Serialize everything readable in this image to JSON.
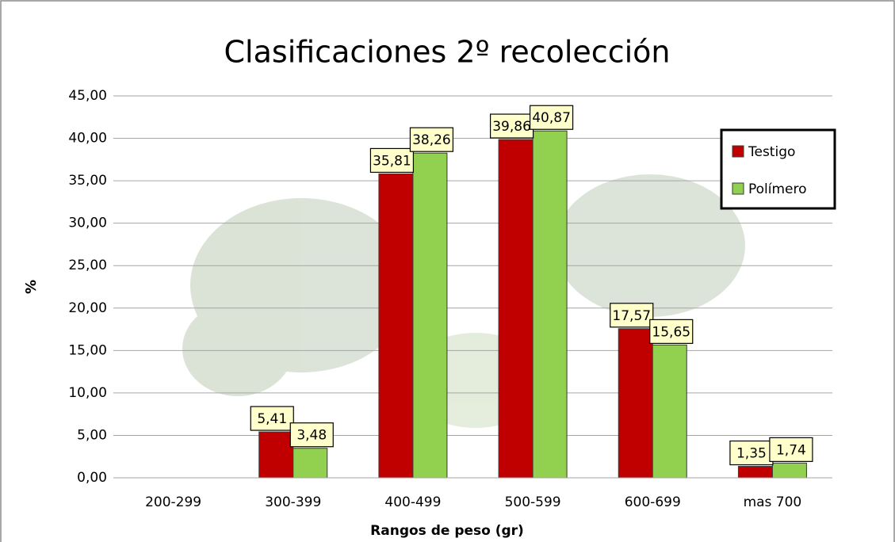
{
  "chart_data": {
    "type": "bar",
    "title": "Clasificaciones 2º recolección",
    "x_label": "Rangos de peso (gr)",
    "y_label": "%",
    "categories": [
      "200-299",
      "300-399",
      "400-499",
      "500-599",
      "600-699",
      "mas 700"
    ],
    "series": [
      {
        "name": "Testigo",
        "color": "#c00000",
        "values": [
          null,
          5.41,
          35.81,
          39.86,
          17.57,
          1.35
        ],
        "value_labels": [
          null,
          "5,41",
          "35,81",
          "39,86",
          "17,57",
          "1,35"
        ]
      },
      {
        "name": "Polímero",
        "color": "#92d050",
        "values": [
          null,
          3.48,
          38.26,
          40.87,
          15.65,
          1.74
        ],
        "value_labels": [
          null,
          "3,48",
          "38,26",
          "40,87",
          "15,65",
          "1,74"
        ]
      }
    ],
    "ylim": [
      0,
      45
    ],
    "yticks": [
      {
        "value": 0,
        "label": "0,00"
      },
      {
        "value": 5,
        "label": "5,00"
      },
      {
        "value": 10,
        "label": "10,00"
      },
      {
        "value": 15,
        "label": "15,00"
      },
      {
        "value": 20,
        "label": "20,00"
      },
      {
        "value": 25,
        "label": "25,00"
      },
      {
        "value": 30,
        "label": "30,00"
      },
      {
        "value": 35,
        "label": "35,00"
      },
      {
        "value": 40,
        "label": "40,00"
      },
      {
        "value": 45,
        "label": "45,00"
      }
    ],
    "grid": true,
    "legend": "right"
  }
}
